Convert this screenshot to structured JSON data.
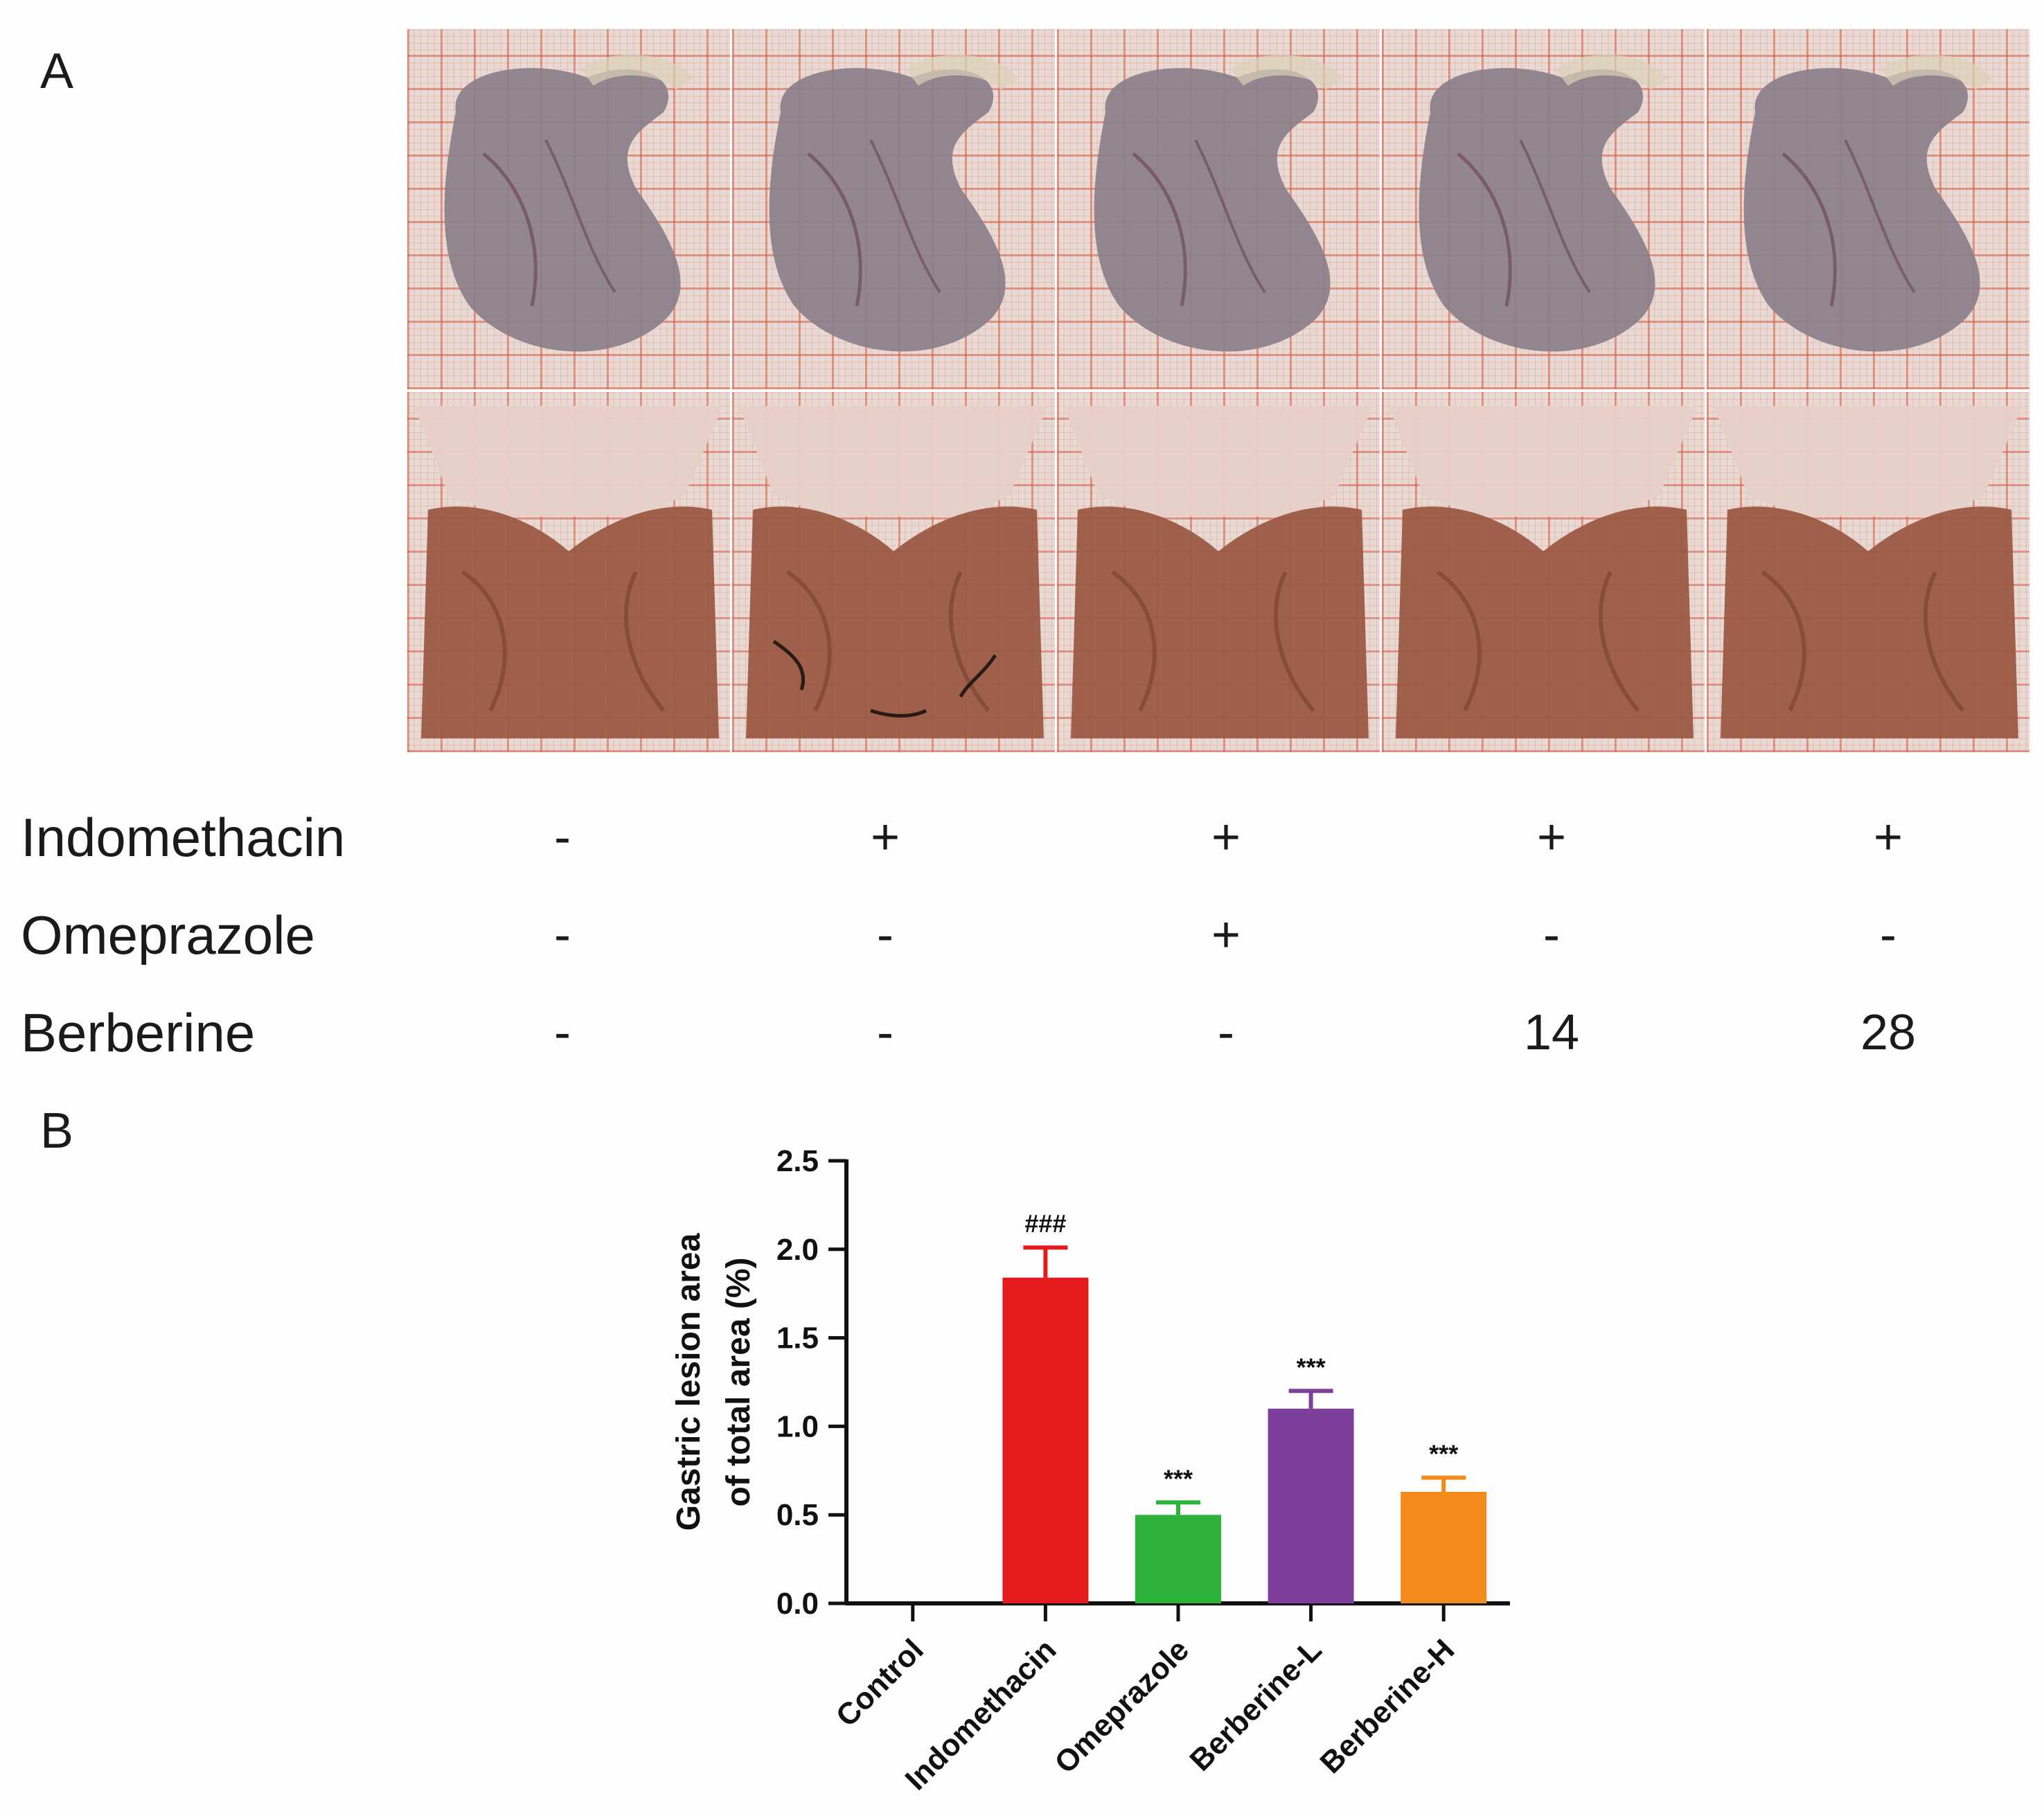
{
  "panel_a": {
    "label": "A",
    "columns": [
      "col-1",
      "col-2",
      "col-3",
      "col-4",
      "col-5"
    ],
    "treatments": [
      {
        "name": "Indomethacin",
        "values": [
          "-",
          "+",
          "+",
          "+",
          "+"
        ]
      },
      {
        "name": "Omeprazole",
        "values": [
          "-",
          "-",
          "+",
          "-",
          "-"
        ]
      },
      {
        "name": "Berberine",
        "values": [
          "-",
          "-",
          "-",
          "14",
          "28"
        ]
      }
    ],
    "photo_colors": {
      "grid_bg": "#e9d9d4",
      "stomach_outer": "#8a7f8a",
      "mucosa": "#9b5a44",
      "forestomach": "#e6d0c8",
      "lesion": "#2a1a15"
    }
  },
  "panel_b": {
    "label": "B"
  },
  "chart_data": {
    "type": "bar",
    "categories": [
      "Control",
      "Indomethacin",
      "Omeprazole",
      "Berberine-L",
      "Berberine-H"
    ],
    "values": [
      0,
      1.84,
      0.5,
      1.1,
      0.63
    ],
    "errors": [
      0,
      0.17,
      0.07,
      0.1,
      0.08
    ],
    "annotations": [
      "",
      "###",
      "***",
      "***",
      "***"
    ],
    "colors": [
      "#ffffff",
      "#e41a1c",
      "#2db33c",
      "#7e3f9a",
      "#f28a1c"
    ],
    "ylabel_lines": [
      "Gastric lesion area",
      "of total area (%)"
    ],
    "ylim": [
      0,
      2.5
    ],
    "yticks": [
      0.0,
      0.5,
      1.0,
      1.5,
      2.0,
      2.5
    ],
    "ytick_labels": [
      "0.0",
      "0.5",
      "1.0",
      "1.5",
      "2.0",
      "2.5"
    ],
    "grid": false
  }
}
